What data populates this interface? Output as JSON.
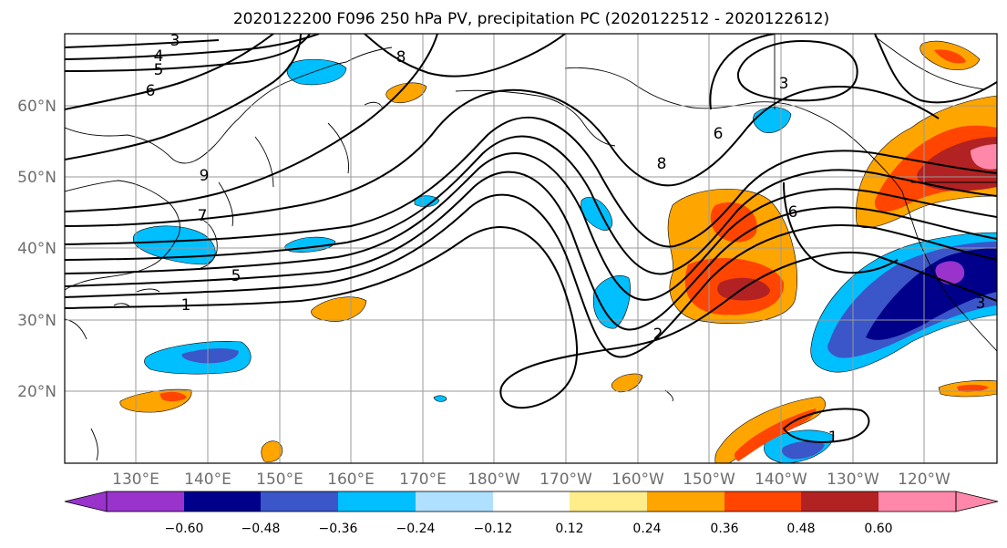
{
  "title": "2020122200 F096 250 hPa PV, precipitation PC (2020122512 - 2020122612)",
  "lat_labels": [
    "60°N",
    "50°N",
    "40°N",
    "30°N",
    "20°N"
  ],
  "lon_labels": [
    "130°E",
    "140°E",
    "150°E",
    "160°E",
    "170°E",
    "180°W",
    "170°W",
    "160°W",
    "150°W",
    "140°W",
    "130°W",
    "120°W"
  ],
  "contour_labels": [
    "3",
    "4",
    "5",
    "6",
    "8",
    "9",
    "7",
    "5",
    "1",
    "3",
    "6",
    "8",
    "6",
    "2",
    "1",
    "3"
  ],
  "colorbar": {
    "tick_labels": [
      "−0.60",
      "−0.48",
      "−0.36",
      "−0.24",
      "−0.12",
      "0.12",
      "0.24",
      "0.36",
      "0.48",
      "0.60"
    ],
    "colors": [
      "#9933cc",
      "#00008b",
      "#3a56c8",
      "#00bfff",
      "#b0e0ff",
      "#ffffff",
      "#ffec8b",
      "#ffa500",
      "#ff4500",
      "#b22222",
      "#ff88aa"
    ]
  }
}
